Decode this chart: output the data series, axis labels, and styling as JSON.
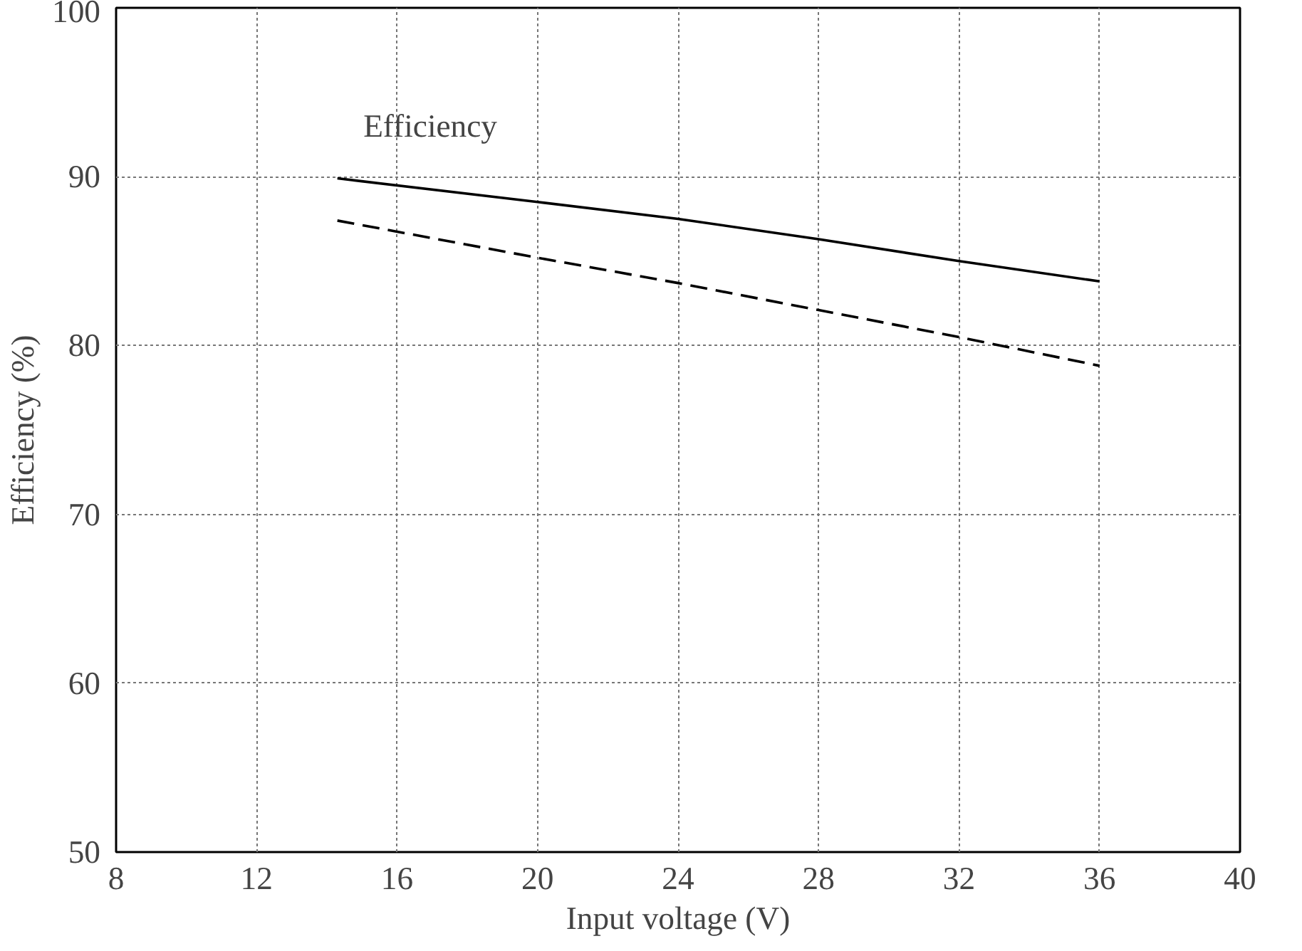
{
  "chart_data": {
    "type": "line",
    "xlabel": "Input voltage (V)",
    "ylabel": "Efficiency (%)",
    "xlim": [
      8,
      40
    ],
    "xticks": [
      8,
      12,
      16,
      20,
      24,
      28,
      32,
      36,
      40
    ],
    "ylim": [
      50,
      100
    ],
    "yticks": [
      50,
      60,
      70,
      80,
      90,
      100
    ],
    "grid": true,
    "marker": "none",
    "annotations": [
      "Efficiency"
    ],
    "series": [
      {
        "color": "#000000",
        "line_style": "solid",
        "x": [
          14.3,
          20,
          24,
          28,
          32,
          36
        ],
        "values": [
          89.9,
          88.5,
          87.5,
          86.3,
          85.0,
          83.8
        ]
      },
      {
        "color": "#000000",
        "line_style": "dashed",
        "x": [
          14.3,
          20,
          24,
          28,
          32,
          36
        ],
        "values": [
          87.4,
          85.2,
          83.7,
          82.1,
          80.5,
          78.8
        ]
      }
    ]
  }
}
